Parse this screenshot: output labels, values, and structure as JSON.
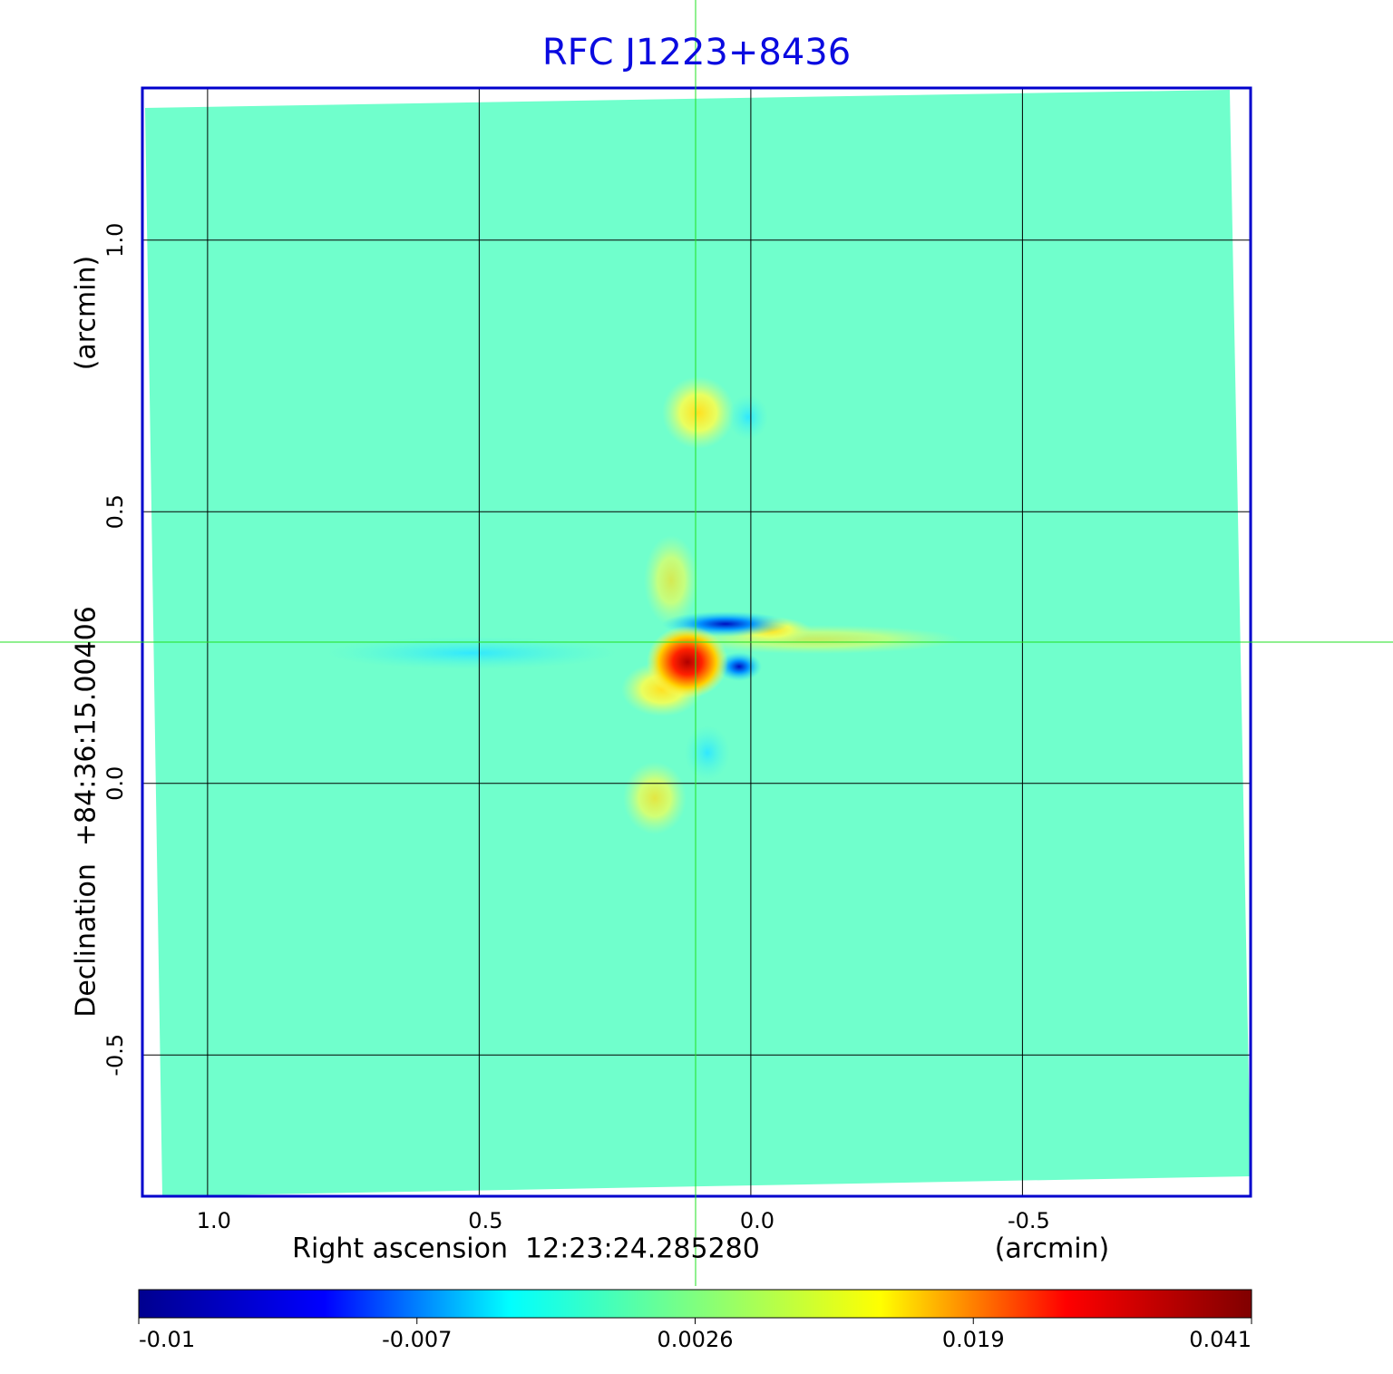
{
  "chart_data": {
    "type": "image",
    "title": "RFC J1223+8436",
    "title_color": "#0a0ae0",
    "x_label": "Right ascension  12:23:24.285280",
    "x_unit": "(arcmin)",
    "y_label": "Declination  +84:36:15.00406",
    "y_unit": "(arcmin)",
    "xlim": [
      1.12,
      -0.92
    ],
    "ylim": [
      -0.76,
      1.28
    ],
    "xticks": [
      {
        "value": 1,
        "label": "1.0"
      },
      0.5,
      {
        "value": 0,
        "label": "0.0"
      },
      -0.5
    ],
    "yticks": [
      {
        "value": 1,
        "label": "1.0"
      },
      0.5,
      {
        "value": 0,
        "label": "0.0"
      },
      -0.5
    ],
    "grid": true,
    "frame_color": "#0000cc",
    "colorbar_ticks": [
      -0.01,
      -0.007,
      0.0026,
      0.019,
      0.041
    ],
    "colormap": [
      "#00008f",
      "#0000ff",
      "#00ffff",
      "#7fff7f",
      "#ffff00",
      "#ff0000",
      "#800000"
    ]
  }
}
